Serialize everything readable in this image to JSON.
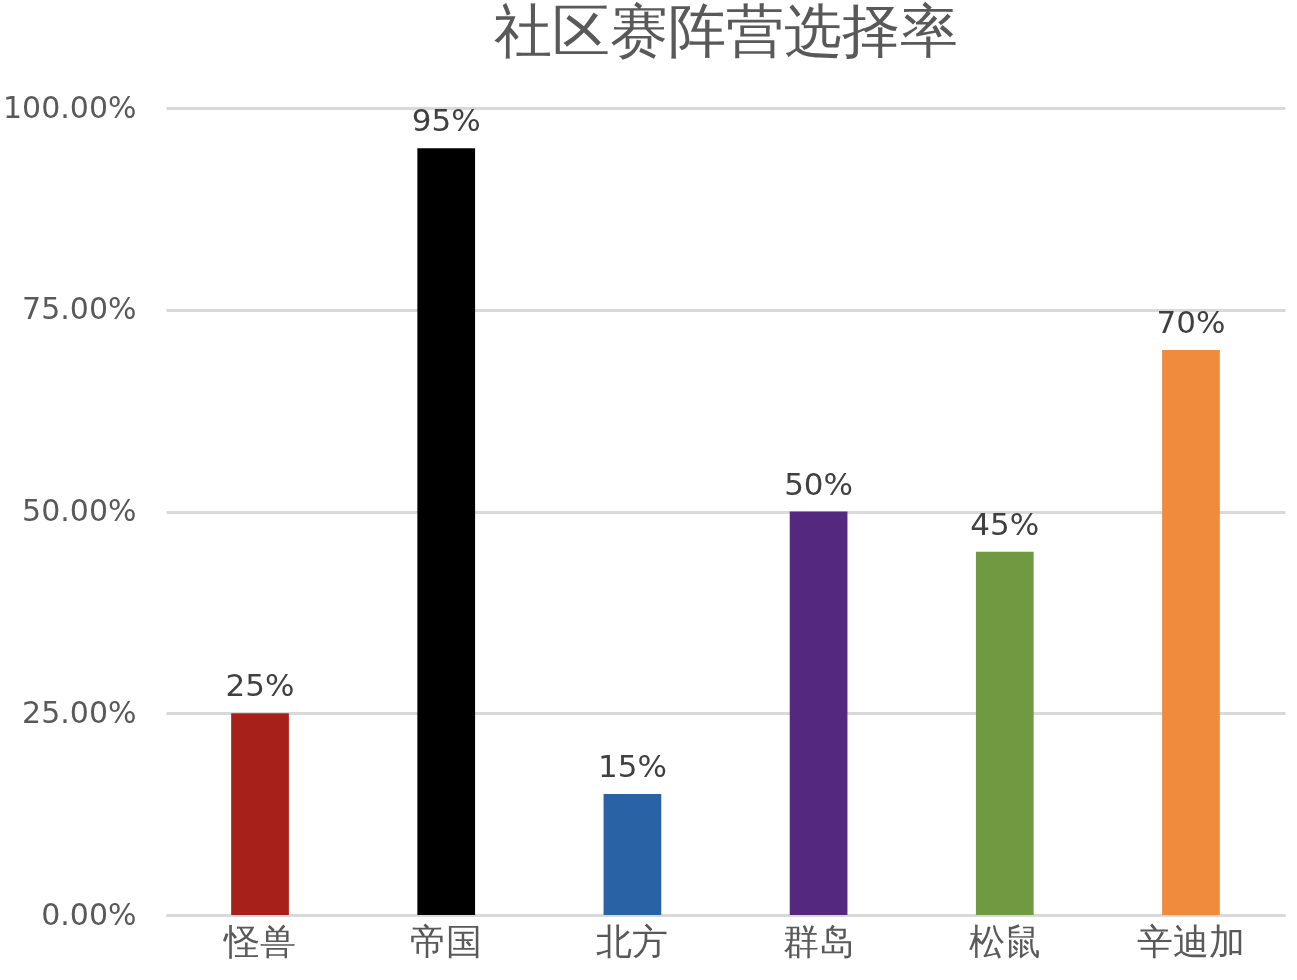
{
  "chart_data": {
    "type": "bar",
    "title": "社区赛阵营选择率",
    "categories": [
      "怪兽",
      "帝国",
      "北方",
      "群岛",
      "松鼠",
      "辛迪加"
    ],
    "values": [
      25,
      95,
      15,
      50,
      45,
      70
    ],
    "value_labels": [
      "25%",
      "95%",
      "15%",
      "50%",
      "45%",
      "70%"
    ],
    "colors": [
      "#a8201a",
      "#000000",
      "#2a62a6",
      "#55287f",
      "#6f9a42",
      "#f08a3c"
    ],
    "ylim": [
      0,
      100
    ],
    "yticks": [
      {
        "value": 0,
        "label": "0.00%"
      },
      {
        "value": 25,
        "label": "25.00%"
      },
      {
        "value": 50,
        "label": "50.00%"
      },
      {
        "value": 75,
        "label": "75.00%"
      },
      {
        "value": 100,
        "label": "100.00%"
      }
    ],
    "grid": "y"
  }
}
